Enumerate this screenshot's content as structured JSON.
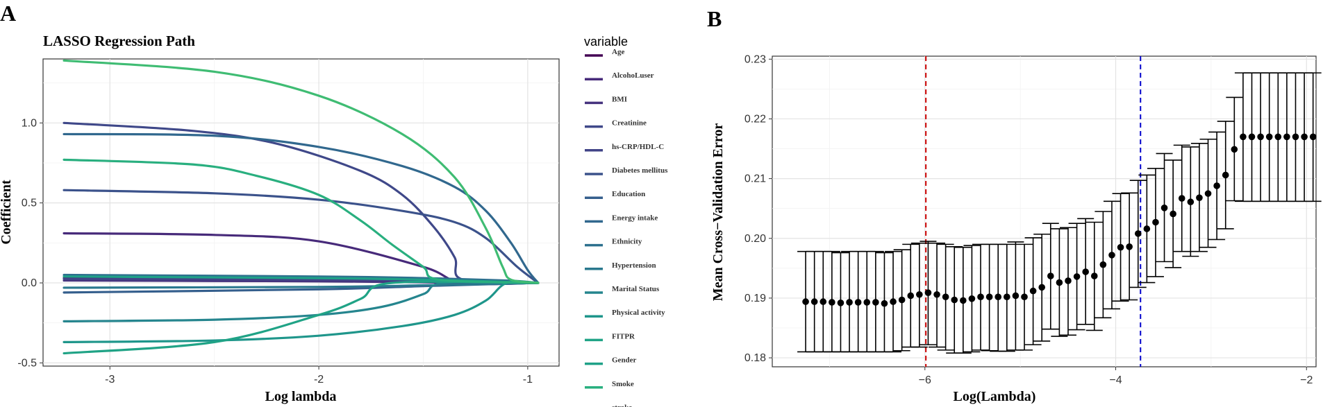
{
  "panel_labels": {
    "a": "A",
    "b": "B"
  },
  "chart_data": [
    {
      "type": "line",
      "title": "LASSO Regression Path",
      "xlabel": "Log lambda",
      "ylabel": "Coefficient",
      "xlim": [
        -3.32,
        -0.85
      ],
      "ylim": [
        -0.52,
        1.4
      ],
      "xticks": [
        -3,
        -2,
        -1
      ],
      "xtick_labels": [
        "-3",
        "-2",
        "-1"
      ],
      "yticks": [
        -0.5,
        0,
        0.5,
        1.0
      ],
      "ytick_labels": [
        "-0.5",
        "0.0",
        "0.5",
        "1.0"
      ],
      "grid": true,
      "legend_title": "variable",
      "legend_position": "right",
      "series": [
        {
          "name": "Age",
          "color": "#440154",
          "x": [
            -3.22,
            -2.5,
            -2.0,
            -1.5,
            -1.3,
            -0.95
          ],
          "values": [
            0.03,
            0.025,
            0.018,
            0.008,
            0.0,
            0.0
          ]
        },
        {
          "name": "AlcohoLuser",
          "color": "#472a7a",
          "x": [
            -3.22,
            -2.5,
            -2.0,
            -1.5,
            -1.31,
            -0.95
          ],
          "values": [
            0.31,
            0.3,
            0.26,
            0.1,
            0.0,
            0.0
          ]
        },
        {
          "name": "BMI",
          "color": "#46337e",
          "x": [
            -3.22,
            -2.5,
            -2.0,
            -1.5,
            -1.35,
            -0.95
          ],
          "values": [
            0.015,
            0.012,
            0.01,
            0.004,
            0.0,
            0.0
          ]
        },
        {
          "name": "Creatinine",
          "color": "#3f4889",
          "x": [
            -3.22,
            -2.6,
            -2.2,
            -1.8,
            -1.6,
            -1.45,
            -1.35,
            -1.31,
            -0.95
          ],
          "values": [
            1.0,
            0.95,
            0.87,
            0.7,
            0.55,
            0.35,
            0.16,
            0.02,
            0.0
          ]
        },
        {
          "name": "hs-CRP/HDL-C",
          "color": "#414487",
          "x": [
            -3.22,
            -2.0,
            -1.5,
            -1.2,
            -1.05,
            -1.0,
            -0.95
          ],
          "values": [
            0.025,
            0.02,
            0.015,
            0.008,
            0.003,
            0.0,
            0.0
          ]
        },
        {
          "name": "Diabetes mellitus",
          "color": "#3b528b",
          "x": [
            -3.22,
            -2.5,
            -2.0,
            -1.6,
            -1.35,
            -1.2,
            -1.05,
            -0.95
          ],
          "values": [
            0.58,
            0.56,
            0.52,
            0.45,
            0.38,
            0.28,
            0.1,
            0.0
          ]
        },
        {
          "name": "Education",
          "color": "#355f8d",
          "x": [
            -3.22,
            -2.0,
            -1.5,
            -1.1,
            -0.95
          ],
          "values": [
            -0.06,
            -0.04,
            -0.02,
            -0.005,
            0.0
          ]
        },
        {
          "name": "Energy intake",
          "color": "#31688e",
          "x": [
            -3.22,
            -2.5,
            -2.0,
            -1.6,
            -1.35,
            -1.2,
            -1.08,
            -1.0,
            -0.95
          ],
          "values": [
            0.93,
            0.92,
            0.85,
            0.73,
            0.6,
            0.45,
            0.25,
            0.08,
            0.0
          ]
        },
        {
          "name": "Ethnicity",
          "color": "#2d708e",
          "x": [
            -3.22,
            -2.0,
            -1.5,
            -1.1,
            -0.95
          ],
          "values": [
            0.05,
            0.04,
            0.03,
            0.015,
            0.0
          ]
        },
        {
          "name": "Hypertension",
          "color": "#2a788e",
          "x": [
            -3.22,
            -2.0,
            -1.5,
            -1.1,
            -0.95
          ],
          "values": [
            -0.03,
            -0.025,
            -0.015,
            -0.005,
            0.0
          ]
        },
        {
          "name": "Marital Status",
          "color": "#25858e",
          "x": [
            -3.22,
            -2.5,
            -2.0,
            -1.7,
            -1.5,
            -1.4,
            -0.95
          ],
          "values": [
            -0.24,
            -0.23,
            -0.2,
            -0.15,
            -0.07,
            0.0,
            0.0
          ]
        },
        {
          "name": "Physical activity",
          "color": "#1f968b",
          "x": [
            -3.22,
            -2.5,
            -2.0,
            -1.6,
            -1.35,
            -1.2,
            -1.1,
            -0.95
          ],
          "values": [
            -0.37,
            -0.36,
            -0.33,
            -0.27,
            -0.2,
            -0.11,
            0.0,
            0.0
          ]
        },
        {
          "name": "FITPR",
          "color": "#20a386",
          "x": [
            -3.22,
            -2.5,
            -2.0,
            -1.8,
            -1.65,
            -0.95
          ],
          "values": [
            -0.44,
            -0.37,
            -0.2,
            -0.1,
            0.0,
            0.0
          ]
        },
        {
          "name": "Gender",
          "color": "#1fa188",
          "x": [
            -3.22,
            -2.0,
            -1.5,
            -1.2,
            -0.95
          ],
          "values": [
            0.04,
            0.03,
            0.02,
            0.01,
            0.0
          ]
        },
        {
          "name": "Smoke",
          "color": "#29af7f",
          "x": [
            -3.22,
            -2.6,
            -2.3,
            -2.0,
            -1.8,
            -1.65,
            -1.5,
            -1.42,
            -0.95
          ],
          "values": [
            0.77,
            0.74,
            0.67,
            0.55,
            0.39,
            0.24,
            0.1,
            0.02,
            0.0
          ]
        },
        {
          "name": "stroke",
          "color": "#3fbc73",
          "x": [
            -3.22,
            -2.5,
            -2.0,
            -1.6,
            -1.35,
            -1.2,
            -1.12,
            -1.08,
            -0.95
          ],
          "values": [
            1.39,
            1.32,
            1.17,
            0.93,
            0.66,
            0.34,
            0.1,
            0.02,
            0.0
          ]
        }
      ]
    },
    {
      "type": "scatter",
      "subtype": "errorbar",
      "xlabel": "Log(Lambda)",
      "ylabel": "Mean Cross−Validation Error",
      "xlim": [
        -7.6,
        -1.9
      ],
      "ylim": [
        0.1785,
        0.2305
      ],
      "xticks": [
        -6,
        -4,
        -2
      ],
      "xtick_labels": [
        "−6",
        "−4",
        "−2"
      ],
      "yticks": [
        0.18,
        0.19,
        0.2,
        0.21,
        0.22,
        0.23
      ],
      "ytick_labels": [
        "0.18",
        "0.19",
        "0.20",
        "0.21",
        "0.22",
        "0.23"
      ],
      "grid": true,
      "vlines": [
        {
          "x": -5.99,
          "color": "#cc0000",
          "style": "dashed"
        },
        {
          "x": -3.74,
          "color": "#0000cc",
          "style": "dashed"
        }
      ],
      "x_start": -7.25,
      "x_step": 0.0917,
      "mean": [
        0.1894,
        0.1894,
        0.1894,
        0.1893,
        0.1892,
        0.1893,
        0.1893,
        0.1893,
        0.1893,
        0.1891,
        0.1894,
        0.1897,
        0.1904,
        0.1906,
        0.1909,
        0.1906,
        0.1902,
        0.1897,
        0.1896,
        0.1899,
        0.1902,
        0.1902,
        0.1902,
        0.1902,
        0.1904,
        0.1902,
        0.1912,
        0.1918,
        0.1937,
        0.1926,
        0.1929,
        0.1936,
        0.1944,
        0.1937,
        0.1956,
        0.1972,
        0.1985,
        0.1986,
        0.2008,
        0.2016,
        0.2027,
        0.2051,
        0.2041,
        0.2067,
        0.2061,
        0.2068,
        0.2075,
        0.2088,
        0.2106,
        0.2149,
        0.217,
        0.217,
        0.217,
        0.217,
        0.217,
        0.217,
        0.217,
        0.217,
        0.217
      ],
      "lower": [
        0.181,
        0.181,
        0.181,
        0.181,
        0.181,
        0.181,
        0.181,
        0.181,
        0.181,
        0.181,
        0.181,
        0.1812,
        0.1818,
        0.1818,
        0.1822,
        0.1818,
        0.1813,
        0.1808,
        0.1808,
        0.181,
        0.1813,
        0.1812,
        0.1811,
        0.1811,
        0.1813,
        0.1813,
        0.1822,
        0.1828,
        0.1848,
        0.1836,
        0.1838,
        0.1847,
        0.1856,
        0.1846,
        0.1867,
        0.1882,
        0.1895,
        0.1897,
        0.1918,
        0.1926,
        0.1936,
        0.1961,
        0.1951,
        0.1978,
        0.197,
        0.1978,
        0.1985,
        0.1998,
        0.2016,
        0.2063,
        0.2062,
        0.2062,
        0.2062,
        0.2062,
        0.2062,
        0.2062,
        0.2062,
        0.2062,
        0.2062
      ],
      "upper": [
        0.1978,
        0.1978,
        0.1978,
        0.1978,
        0.1976,
        0.1978,
        0.1978,
        0.1978,
        0.1978,
        0.1976,
        0.1978,
        0.1981,
        0.199,
        0.1992,
        0.1995,
        0.1992,
        0.199,
        0.1986,
        0.1985,
        0.1988,
        0.199,
        0.199,
        0.199,
        0.199,
        0.1994,
        0.199,
        0.2001,
        0.2007,
        0.2025,
        0.2016,
        0.2018,
        0.2025,
        0.2033,
        0.2027,
        0.2045,
        0.2062,
        0.2075,
        0.2076,
        0.2097,
        0.2106,
        0.2117,
        0.2142,
        0.2131,
        0.2156,
        0.2153,
        0.2159,
        0.2166,
        0.2178,
        0.2196,
        0.2236,
        0.2277,
        0.2277,
        0.2277,
        0.2277,
        0.2277,
        0.2277,
        0.2277,
        0.2277,
        0.2277
      ]
    }
  ]
}
